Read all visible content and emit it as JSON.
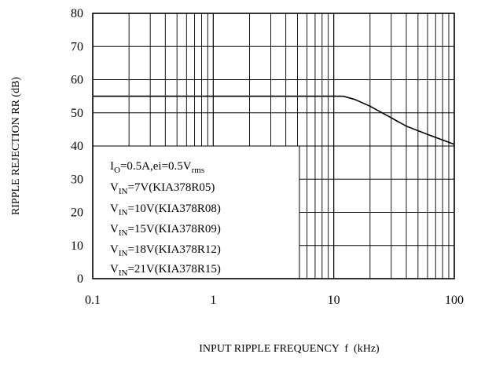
{
  "chart_data": {
    "type": "line",
    "xlabel": "INPUT RIPPLE FREQUENCY  f  (kHz)",
    "ylabel": "RIPPLE REJECTION RR (dB)",
    "x_scale": "log",
    "xlim": [
      0.1,
      100
    ],
    "ylim": [
      0,
      80
    ],
    "x_ticks": [
      "0.1",
      "1",
      "10",
      "100"
    ],
    "y_ticks": [
      "0",
      "10",
      "20",
      "30",
      "40",
      "50",
      "60",
      "70",
      "80"
    ],
    "grid": true,
    "series": [
      {
        "x": [
          0.1,
          1,
          10,
          12,
          15,
          20,
          30,
          40,
          60,
          100
        ],
        "y": [
          55,
          55,
          55,
          55,
          54,
          52,
          48.5,
          46,
          43.5,
          40.5
        ]
      }
    ],
    "annotation": {
      "lines": [
        {
          "main": "I",
          "sub": "O",
          "rest": "=0.5A,ei=0.5V",
          "sub2": "rms"
        },
        {
          "main": "V",
          "sub": "IN",
          "rest": "=7V(KIA378R05)",
          "sub2": ""
        },
        {
          "main": "V",
          "sub": "IN",
          "rest": "=10V(KIA378R08)",
          "sub2": ""
        },
        {
          "main": "V",
          "sub": "IN",
          "rest": "=15V(KIA378R09)",
          "sub2": ""
        },
        {
          "main": "V",
          "sub": "IN",
          "rest": "=18V(KIA378R12)",
          "sub2": ""
        },
        {
          "main": "V",
          "sub": "IN",
          "rest": "=21V(KIA378R15)",
          "sub2": ""
        }
      ]
    }
  }
}
